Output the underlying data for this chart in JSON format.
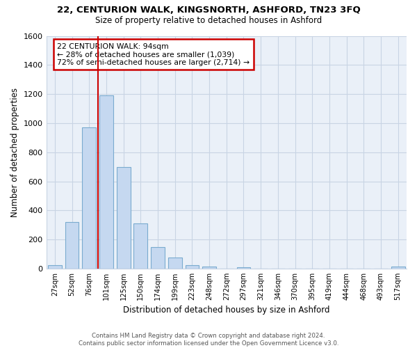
{
  "title1": "22, CENTURION WALK, KINGSNORTH, ASHFORD, TN23 3FQ",
  "title2": "Size of property relative to detached houses in Ashford",
  "xlabel": "Distribution of detached houses by size in Ashford",
  "ylabel": "Number of detached properties",
  "bar_labels": [
    "27sqm",
    "52sqm",
    "76sqm",
    "101sqm",
    "125sqm",
    "150sqm",
    "174sqm",
    "199sqm",
    "223sqm",
    "248sqm",
    "272sqm",
    "297sqm",
    "321sqm",
    "346sqm",
    "370sqm",
    "395sqm",
    "419sqm",
    "444sqm",
    "468sqm",
    "493sqm",
    "517sqm"
  ],
  "bar_values": [
    25,
    320,
    970,
    1190,
    700,
    310,
    150,
    75,
    25,
    15,
    0,
    10,
    0,
    0,
    0,
    0,
    0,
    0,
    0,
    0,
    15
  ],
  "bar_color": "#c5d8f0",
  "bar_edge_color": "#7aabcf",
  "vline_color": "#cc0000",
  "vline_xindex": 2.5,
  "ylim": [
    0,
    1600
  ],
  "yticks": [
    0,
    200,
    400,
    600,
    800,
    1000,
    1200,
    1400,
    1600
  ],
  "annotation_title": "22 CENTURION WALK: 94sqm",
  "annotation_line1": "← 28% of detached houses are smaller (1,039)",
  "annotation_line2": "72% of semi-detached houses are larger (2,714) →",
  "annotation_box_color": "#ffffff",
  "annotation_box_edge": "#cc0000",
  "footer1": "Contains HM Land Registry data © Crown copyright and database right 2024.",
  "footer2": "Contains public sector information licensed under the Open Government Licence v3.0.",
  "background_color": "#ffffff",
  "plot_bg_color": "#eaf0f8",
  "grid_color": "#c8d4e4"
}
